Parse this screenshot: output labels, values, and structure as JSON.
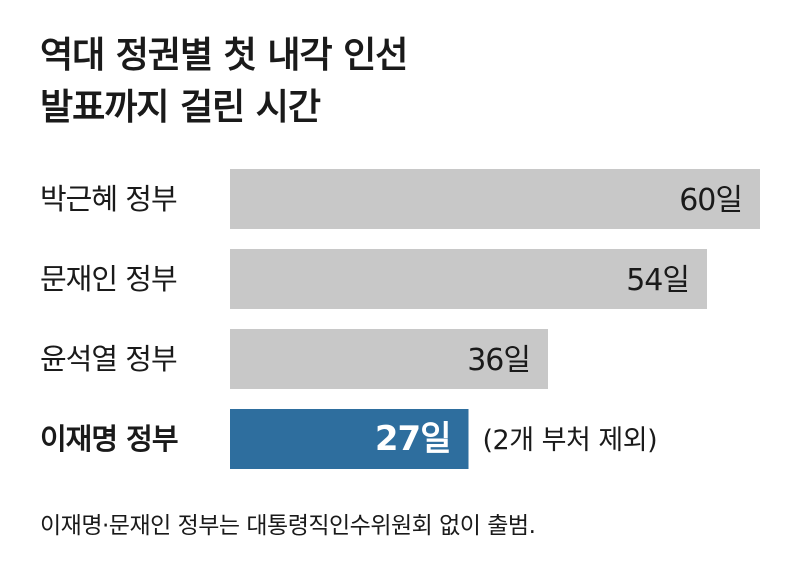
{
  "title": {
    "line1": "역대 정권별 첫 내각 인선",
    "line2": "발표까지 걸린 시간"
  },
  "chart_data": {
    "type": "bar",
    "orientation": "horizontal",
    "categories": [
      "박근혜 정부",
      "문재인 정부",
      "윤석열 정부",
      "이재명 정부"
    ],
    "values": [
      60,
      54,
      36,
      27
    ],
    "value_labels": [
      "60일",
      "54일",
      "36일",
      "27일"
    ],
    "unit": "일",
    "highlight_index": 3,
    "annotation": "(2개 부처 제외)",
    "xlim": [
      0,
      60
    ],
    "grid": false,
    "colors": {
      "default_bar": "#c8c8c8",
      "highlight_bar": "#2e6e9e",
      "default_label": "#1a1a1a",
      "highlight_value_label": "#ffffff"
    }
  },
  "footnote": "이재명·문재인 정부는 대통령직인수위원회 없이 출범."
}
